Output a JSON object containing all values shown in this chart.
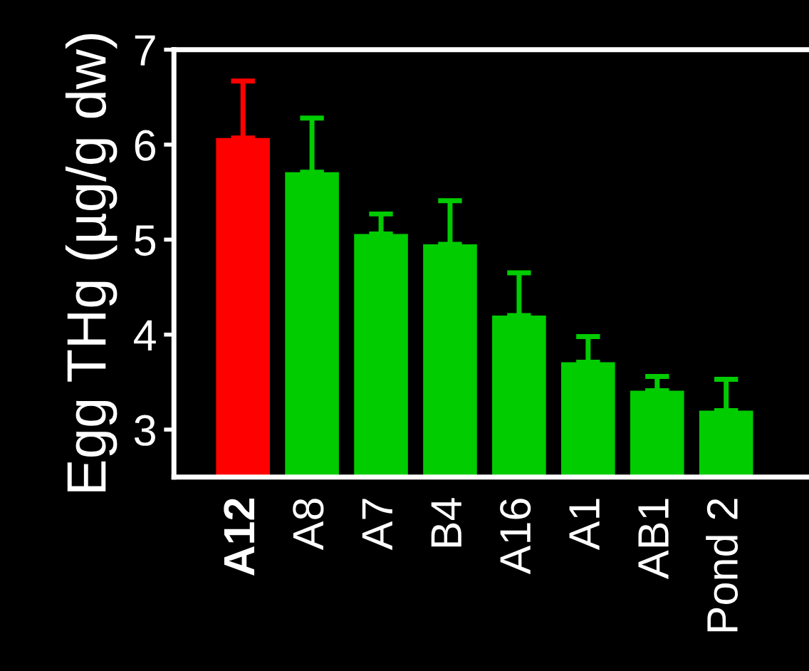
{
  "chart_data": {
    "type": "bar",
    "ylabel": "Egg THg (µg/g dw)",
    "categories": [
      "A12",
      "A8",
      "A7",
      "B4",
      "A16",
      "A1",
      "AB1",
      "Pond 2"
    ],
    "values": [
      6.07,
      5.71,
      5.06,
      4.95,
      4.2,
      3.71,
      3.41,
      3.2
    ],
    "colors": [
      "#ff0000",
      "#00cc00",
      "#00cc00",
      "#00cc00",
      "#00cc00",
      "#00cc00",
      "#00cc00",
      "#00cc00"
    ],
    "errors": [
      [
        6.07,
        6.67
      ],
      [
        5.71,
        6.28
      ],
      [
        5.06,
        5.27
      ],
      [
        4.95,
        5.41
      ],
      [
        4.2,
        4.65
      ],
      [
        3.71,
        3.98
      ],
      [
        3.41,
        3.56
      ],
      [
        3.2,
        3.53
      ]
    ],
    "ylim": [
      2.5,
      7
    ],
    "yticks": [
      3,
      4,
      5,
      6,
      7
    ],
    "grid": false,
    "legend": false
  }
}
